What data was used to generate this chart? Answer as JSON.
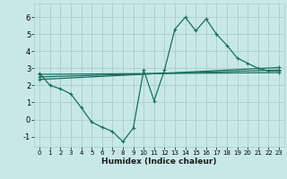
{
  "xlabel": "Humidex (Indice chaleur)",
  "xlim": [
    -0.5,
    23.5
  ],
  "ylim": [
    -1.6,
    6.8
  ],
  "yticks": [
    -1,
    0,
    1,
    2,
    3,
    4,
    5,
    6
  ],
  "xticks": [
    0,
    1,
    2,
    3,
    4,
    5,
    6,
    7,
    8,
    9,
    10,
    11,
    12,
    13,
    14,
    15,
    16,
    17,
    18,
    19,
    20,
    21,
    22,
    23
  ],
  "background_color": "#c8e8e8",
  "grid_color": "#a8cccc",
  "line_color": "#1a6e60",
  "zigzag_x": [
    0,
    1,
    2,
    3,
    4,
    5,
    6,
    7,
    8,
    9,
    10,
    11,
    12,
    13,
    14,
    15,
    16,
    17,
    18,
    19,
    20,
    21,
    22,
    23
  ],
  "zigzag_y": [
    2.7,
    2.0,
    1.8,
    1.5,
    0.7,
    -0.15,
    -0.45,
    -0.7,
    -1.3,
    -0.5,
    2.9,
    1.1,
    2.9,
    5.3,
    6.0,
    5.2,
    5.9,
    5.0,
    4.35,
    3.6,
    3.3,
    3.0,
    2.85,
    2.85
  ],
  "line1_x": [
    0,
    23
  ],
  "line1_y": [
    2.65,
    2.75
  ],
  "line2_x": [
    0,
    23
  ],
  "line2_y": [
    2.5,
    2.9
  ],
  "line3_x": [
    0,
    23
  ],
  "line3_y": [
    2.35,
    3.05
  ]
}
